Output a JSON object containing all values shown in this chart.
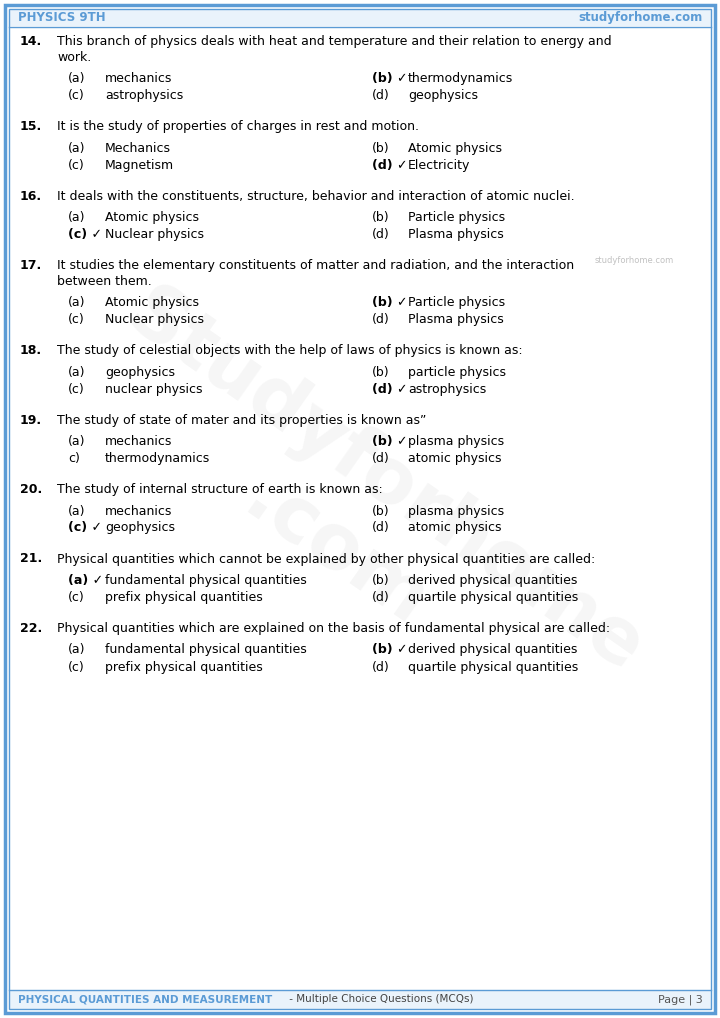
{
  "header_left": "PHYSICS 9TH",
  "header_right": "studyforhome.com",
  "footer_left": "PHYSICAL QUANTITIES AND MEASUREMENT",
  "footer_middle": " - Multiple Choice Questions (MCQs)",
  "footer_right": "Page | 3",
  "header_color": "#5b9bd5",
  "footer_color": "#5b9bd5",
  "bg_color": "#ffffff",
  "border_color": "#5b9bd5",
  "text_color": "#000000",
  "questions": [
    {
      "num": "14.",
      "question_lines": [
        "This branch of physics deals with heat and temperature and their relation to energy and",
        "work."
      ],
      "options": [
        {
          "label": "(a)",
          "text": "mechanics",
          "correct": false,
          "col": 0
        },
        {
          "label": "(b)",
          "text": "thermodynamics",
          "correct": true,
          "col": 1
        },
        {
          "label": "(c)",
          "text": "astrophysics",
          "correct": false,
          "col": 0
        },
        {
          "label": "(d)",
          "text": "geophysics",
          "correct": false,
          "col": 1
        }
      ]
    },
    {
      "num": "15.",
      "question_lines": [
        "It is the study of properties of charges in rest and motion."
      ],
      "options": [
        {
          "label": "(a)",
          "text": "Mechanics",
          "correct": false,
          "col": 0
        },
        {
          "label": "(b)",
          "text": "Atomic physics",
          "correct": false,
          "col": 1
        },
        {
          "label": "(c)",
          "text": "Magnetism",
          "correct": false,
          "col": 0
        },
        {
          "label": "(d)",
          "text": "Electricity",
          "correct": true,
          "col": 1
        }
      ]
    },
    {
      "num": "16.",
      "question_lines": [
        "It deals with the constituents, structure, behavior and interaction of atomic nuclei."
      ],
      "options": [
        {
          "label": "(a)",
          "text": "Atomic physics",
          "correct": false,
          "col": 0
        },
        {
          "label": "(b)",
          "text": "Particle physics",
          "correct": false,
          "col": 1
        },
        {
          "label": "(c)",
          "text": "Nuclear physics",
          "correct": true,
          "col": 0
        },
        {
          "label": "(d)",
          "text": "Plasma physics",
          "correct": false,
          "col": 1
        }
      ]
    },
    {
      "num": "17.",
      "question_lines": [
        "It studies the elementary constituents of matter and radiation, and the interaction",
        "between them."
      ],
      "options": [
        {
          "label": "(a)",
          "text": "Atomic physics",
          "correct": false,
          "col": 0
        },
        {
          "label": "(b)",
          "text": "Particle physics",
          "correct": true,
          "col": 1
        },
        {
          "label": "(c)",
          "text": "Nuclear physics",
          "correct": false,
          "col": 0
        },
        {
          "label": "(d)",
          "text": "Plasma physics",
          "correct": false,
          "col": 1
        }
      ]
    },
    {
      "num": "18.",
      "question_lines": [
        "The study of celestial objects with the help of laws of physics is known as:"
      ],
      "options": [
        {
          "label": "(a)",
          "text": "geophysics",
          "correct": false,
          "col": 0
        },
        {
          "label": "(b)",
          "text": "particle physics",
          "correct": false,
          "col": 1
        },
        {
          "label": "(c)",
          "text": "nuclear physics",
          "correct": false,
          "col": 0
        },
        {
          "label": "(d)",
          "text": "astrophysics",
          "correct": true,
          "col": 1
        }
      ]
    },
    {
      "num": "19.",
      "question_lines": [
        "The study of state of mater and its properties is known as”"
      ],
      "options": [
        {
          "label": "(a)",
          "text": "mechanics",
          "correct": false,
          "col": 0
        },
        {
          "label": "(b)",
          "text": "plasma physics",
          "correct": true,
          "col": 1
        },
        {
          "label": "c)",
          "text": "thermodynamics",
          "correct": false,
          "col": 0
        },
        {
          "label": "(d)",
          "text": "atomic physics",
          "correct": false,
          "col": 1
        }
      ]
    },
    {
      "num": "20.",
      "question_lines": [
        "The study of internal structure of earth is known as:"
      ],
      "options": [
        {
          "label": "(a)",
          "text": "mechanics",
          "correct": false,
          "col": 0
        },
        {
          "label": "(b)",
          "text": "plasma physics",
          "correct": false,
          "col": 1
        },
        {
          "label": "(c)",
          "text": "geophysics",
          "correct": true,
          "col": 0
        },
        {
          "label": "(d)",
          "text": "atomic physics",
          "correct": false,
          "col": 1
        }
      ]
    },
    {
      "num": "21.",
      "question_lines": [
        "Physical quantities which cannot be explained by other physical quantities are called:"
      ],
      "options": [
        {
          "label": "(a)",
          "text": "fundamental physical quantities",
          "correct": true,
          "col": 0
        },
        {
          "label": "(b)",
          "text": "derived physical quantities",
          "correct": false,
          "col": 1
        },
        {
          "label": "(c)",
          "text": "prefix physical quantities",
          "correct": false,
          "col": 0
        },
        {
          "label": "(d)",
          "text": "quartile physical quantities",
          "correct": false,
          "col": 1
        }
      ]
    },
    {
      "num": "22.",
      "question_lines": [
        "Physical quantities which are explained on the basis of fundamental physical are called:"
      ],
      "options": [
        {
          "label": "(a)",
          "text": "fundamental physical quantities",
          "correct": false,
          "col": 0
        },
        {
          "label": "(b)",
          "text": "derived physical quantities",
          "correct": true,
          "col": 1
        },
        {
          "label": "(c)",
          "text": "prefix physical quantities",
          "correct": false,
          "col": 0
        },
        {
          "label": "(d)",
          "text": "quartile physical quantities",
          "correct": false,
          "col": 1
        }
      ]
    }
  ]
}
